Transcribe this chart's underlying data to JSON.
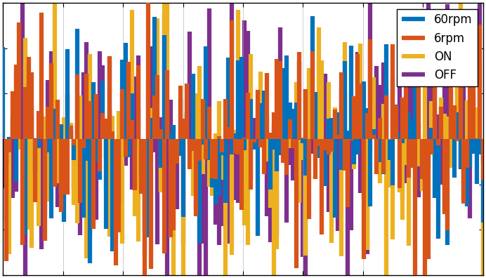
{
  "title": "",
  "xlabel": "",
  "ylabel": "",
  "legend_entries": [
    "60rpm",
    "6rpm",
    "ON",
    "OFF"
  ],
  "colors": [
    "#0072BD",
    "#D95319",
    "#EDB120",
    "#7E2F8E"
  ],
  "ylim": [
    -1.5,
    1.5
  ],
  "xlim": [
    0,
    1
  ],
  "n_points": 150,
  "seed": 7,
  "background_color": "#FFFFFF",
  "figsize": [
    6.92,
    3.96
  ],
  "dpi": 100,
  "linewidth": 4.5
}
